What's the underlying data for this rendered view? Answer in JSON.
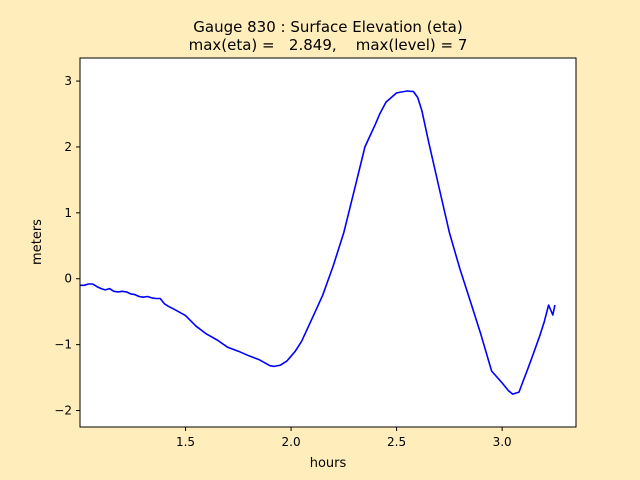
{
  "chart_data": {
    "type": "line",
    "title_line1": "Gauge 830 : Surface Elevation (eta)",
    "title_line2": "max(eta) =   2.849,    max(level) = 7",
    "xlabel": "hours",
    "ylabel": "meters",
    "xlim": [
      1.0,
      3.35
    ],
    "ylim": [
      -2.25,
      3.35
    ],
    "xticks": [
      1.5,
      2.0,
      2.5,
      3.0
    ],
    "xtick_labels": [
      "1.5",
      "2.0",
      "2.5",
      "3.0"
    ],
    "yticks": [
      3,
      2,
      1,
      0,
      -1,
      -2
    ],
    "ytick_labels": [
      "3",
      "2",
      "1",
      "0",
      "−1",
      "−2"
    ],
    "grid": false,
    "series": [
      {
        "color": "#0000ff",
        "x": [
          1.0,
          1.02,
          1.04,
          1.06,
          1.08,
          1.1,
          1.12,
          1.14,
          1.16,
          1.18,
          1.2,
          1.22,
          1.24,
          1.26,
          1.28,
          1.3,
          1.32,
          1.34,
          1.36,
          1.38,
          1.4,
          1.42,
          1.45,
          1.5,
          1.55,
          1.6,
          1.65,
          1.7,
          1.75,
          1.8,
          1.85,
          1.9,
          1.92,
          1.95,
          1.98,
          2.02,
          2.05,
          2.1,
          2.15,
          2.2,
          2.25,
          2.3,
          2.35,
          2.4,
          2.42,
          2.45,
          2.5,
          2.55,
          2.58,
          2.6,
          2.62,
          2.65,
          2.7,
          2.75,
          2.8,
          2.85,
          2.9,
          2.95,
          3.0,
          3.03,
          3.05,
          3.08,
          3.1,
          3.12,
          3.15,
          3.18,
          3.2,
          3.22,
          3.24,
          3.25
        ],
        "y": [
          -0.1,
          -0.1,
          -0.08,
          -0.08,
          -0.12,
          -0.15,
          -0.17,
          -0.15,
          -0.19,
          -0.2,
          -0.19,
          -0.2,
          -0.23,
          -0.24,
          -0.27,
          -0.28,
          -0.27,
          -0.29,
          -0.3,
          -0.3,
          -0.38,
          -0.42,
          -0.47,
          -0.56,
          -0.72,
          -0.84,
          -0.93,
          -1.04,
          -1.1,
          -1.17,
          -1.23,
          -1.32,
          -1.33,
          -1.31,
          -1.25,
          -1.1,
          -0.95,
          -0.6,
          -0.25,
          0.2,
          0.7,
          1.35,
          2.0,
          2.35,
          2.5,
          2.68,
          2.82,
          2.849,
          2.84,
          2.75,
          2.55,
          2.1,
          1.4,
          0.7,
          0.15,
          -0.35,
          -0.85,
          -1.4,
          -1.58,
          -1.7,
          -1.75,
          -1.72,
          -1.55,
          -1.38,
          -1.12,
          -0.85,
          -0.65,
          -0.4,
          -0.55,
          -0.4
        ]
      }
    ]
  }
}
